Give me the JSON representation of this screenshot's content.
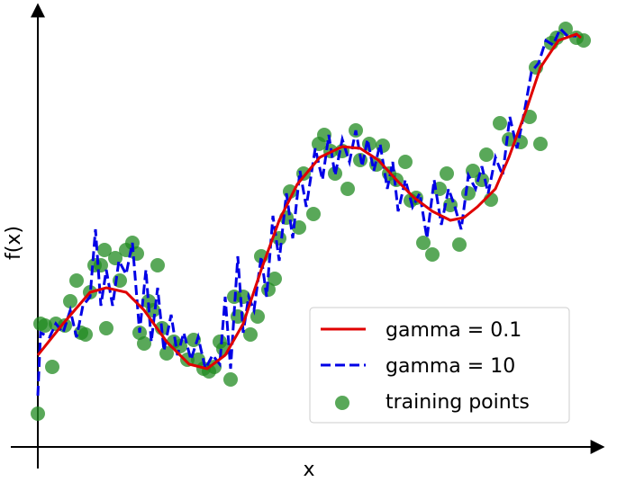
{
  "chart_data": {
    "type": "line",
    "xlabel": "x",
    "ylabel": "f(x)",
    "xlim": [
      -30,
      628
    ],
    "ylim": [
      -24,
      492
    ],
    "legend": "lower right",
    "series": [
      {
        "name": "gamma = 0.1",
        "type": "line",
        "style": "solid",
        "color": "#e00000",
        "x": [
          0,
          28,
          58,
          76,
          98,
          118,
          143,
          168,
          188,
          208,
          228,
          248,
          268,
          288,
          313,
          338,
          358,
          378,
          398,
          418,
          438,
          458,
          473,
          488,
          508,
          523,
          543,
          558,
          578,
          598,
          603
        ],
        "y": [
          102,
          137,
          172,
          177,
          172,
          152,
          117,
          92,
          87,
          102,
          137,
          197,
          252,
          292,
          322,
          334,
          332,
          319,
          297,
          277,
          262,
          252,
          255,
          267,
          287,
          322,
          377,
          422,
          452,
          459,
          455
        ]
      },
      {
        "name": "gamma = 10",
        "type": "line",
        "style": "dashed",
        "color": "#0000e6",
        "x": [
          0,
          3,
          13,
          20,
          28,
          36,
          43,
          50,
          58,
          64,
          70,
          76,
          83,
          90,
          98,
          105,
          113,
          120,
          126,
          133,
          140,
          148,
          155,
          162,
          170,
          178,
          186,
          194,
          202,
          208,
          214,
          222,
          228,
          234,
          240,
          248,
          254,
          261,
          268,
          276,
          283,
          291,
          298,
          308,
          316,
          323,
          330,
          338,
          346,
          353,
          360,
          366,
          373,
          380,
          388,
          394,
          400,
          408,
          416,
          424,
          432,
          440,
          448,
          456,
          463,
          470,
          478,
          486,
          493,
          500,
          508,
          516,
          524,
          532,
          540,
          548,
          556,
          564,
          572,
          580,
          588,
          598
        ],
        "y": [
          57,
          127,
          122,
          137,
          127,
          152,
          122,
          157,
          167,
          242,
          157,
          197,
          157,
          207,
          192,
          227,
          127,
          197,
          117,
          177,
          107,
          147,
          102,
          127,
          97,
          122,
          87,
          102,
          92,
          167,
          87,
          212,
          127,
          167,
          152,
          212,
          167,
          257,
          207,
          282,
          232,
          307,
          267,
          332,
          297,
          347,
          302,
          342,
          317,
          352,
          312,
          342,
          307,
          337,
          287,
          317,
          262,
          297,
          267,
          282,
          232,
          297,
          247,
          287,
          267,
          242,
          302,
          287,
          312,
          282,
          322,
          302,
          367,
          332,
          372,
          417,
          427,
          452,
          447,
          465,
          457,
          457
        ]
      },
      {
        "name": "training points",
        "type": "scatter",
        "color": "#228b22",
        "x": [
          0,
          3,
          8,
          16,
          20,
          30,
          36,
          43,
          48,
          53,
          58,
          63,
          70,
          74,
          76,
          86,
          91,
          98,
          105,
          110,
          113,
          118,
          123,
          128,
          133,
          138,
          143,
          151,
          158,
          166,
          173,
          178,
          184,
          190,
          196,
          202,
          206,
          214,
          218,
          222,
          228,
          236,
          244,
          248,
          256,
          263,
          268,
          276,
          280,
          290,
          295,
          306,
          312,
          318,
          325,
          330,
          338,
          344,
          353,
          358,
          368,
          376,
          383,
          390,
          398,
          408,
          414,
          420,
          428,
          438,
          446,
          454,
          458,
          468,
          478,
          483,
          493,
          498,
          503,
          513,
          523,
          536,
          546,
          553,
          558,
          570,
          576,
          586,
          598,
          606
        ],
        "y": [
          37,
          137,
          135,
          89,
          137,
          135,
          162,
          185,
          127,
          125,
          172,
          202,
          202,
          219,
          132,
          210,
          185,
          219,
          227,
          215,
          127,
          115,
          162,
          152,
          202,
          132,
          104,
          117,
          112,
          97,
          119,
          97,
          87,
          84,
          89,
          117,
          109,
          75,
          167,
          145,
          167,
          125,
          145,
          212,
          175,
          187,
          232,
          255,
          284,
          244,
          304,
          259,
          337,
          347,
          329,
          304,
          329,
          287,
          352,
          319,
          337,
          314,
          335,
          304,
          297,
          317,
          274,
          277,
          227,
          214,
          287,
          304,
          269,
          225,
          282,
          307,
          297,
          325,
          275,
          360,
          342,
          339,
          367,
          422,
          337,
          449,
          455,
          465,
          455,
          452
        ]
      }
    ]
  }
}
